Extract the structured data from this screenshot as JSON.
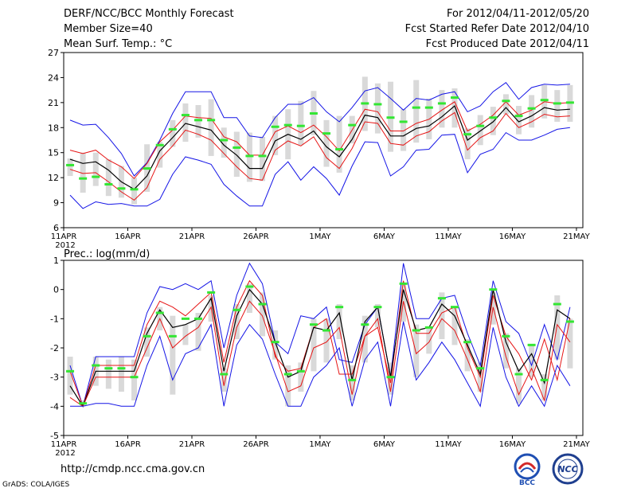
{
  "header": {
    "title": "DERF/NCC/BCC Monthly Forecast",
    "member_size": "Member Size=40",
    "variable_1": "Mean Surf. Temp.: °C",
    "period": "For 2012/04/11-2012/05/20",
    "started_refer": "Fcst Started Refer Date 2012/04/10",
    "produced": "Fcst Produced Date 2012/04/11"
  },
  "footer": {
    "url": "http://cmdp.ncc.cma.gov.cn",
    "grads": "GrADS: COLA/IGES",
    "logo_bcc": "BCC",
    "logo_ncc": "NCC"
  },
  "colors": {
    "envelope": "#1414e6",
    "spread": "#e61414",
    "mean": "#000000",
    "box": "#d9d9d9",
    "marker": "#33e633"
  },
  "chart_data": [
    {
      "type": "line",
      "title": "Mean Surf. Temp.: °C",
      "ylim": [
        6,
        27
      ],
      "yticks": [
        6,
        9,
        12,
        15,
        18,
        21,
        24,
        27
      ],
      "xlim": [
        0,
        40
      ],
      "xticks": [
        {
          "day": 0,
          "label": "11APR"
        },
        {
          "day": 5,
          "label": "16APR"
        },
        {
          "day": 10,
          "label": "21APR"
        },
        {
          "day": 15,
          "label": "26APR"
        },
        {
          "day": 20,
          "label": "1MAY"
        },
        {
          "day": 25,
          "label": "6MAY"
        },
        {
          "day": 30,
          "label": "11MAY"
        },
        {
          "day": 35,
          "label": "16MAY"
        },
        {
          "day": 40,
          "label": "21MAY"
        }
      ],
      "year_label": "2012",
      "series": [
        {
          "name": "ensemble max",
          "role": "envelope",
          "values": [
            18.9,
            18.3,
            18.4,
            16.8,
            14.9,
            12.2,
            13.8,
            16.5,
            19.7,
            22.3,
            22.3,
            22.3,
            19.2,
            19.2,
            17.0,
            16.8,
            19.2,
            20.8,
            20.8,
            21.6,
            19.9,
            18.7,
            20.4,
            22.4,
            22.8,
            21.5,
            20.1,
            21.5,
            21.3,
            22.0,
            22.3,
            19.9,
            20.6,
            22.3,
            23.4,
            21.4,
            22.8,
            23.2,
            23.1,
            23.2
          ]
        },
        {
          "name": "ensemble upper",
          "role": "spread",
          "values": [
            15.3,
            14.9,
            15.3,
            14.1,
            13.3,
            11.9,
            13.7,
            16.3,
            17.7,
            19.4,
            19.2,
            19.1,
            16.9,
            16.3,
            14.7,
            14.7,
            17.5,
            18.2,
            17.4,
            18.3,
            16.9,
            15.2,
            17.7,
            20.2,
            19.9,
            17.6,
            17.6,
            18.5,
            19.0,
            20.1,
            21.1,
            17.6,
            18.4,
            19.5,
            21.1,
            19.5,
            20.1,
            21.1,
            20.9,
            21.0
          ]
        },
        {
          "name": "ensemble mean",
          "role": "mean",
          "values": [
            14.2,
            13.7,
            13.9,
            12.9,
            11.5,
            10.6,
            12.2,
            15.2,
            16.8,
            18.5,
            18.1,
            17.7,
            15.9,
            14.7,
            13.1,
            13.1,
            16.4,
            17.2,
            16.6,
            17.6,
            15.7,
            14.5,
            16.6,
            19.5,
            19.2,
            17.0,
            17.0,
            17.9,
            18.2,
            19.3,
            20.6,
            16.5,
            17.6,
            18.7,
            20.4,
            18.7,
            19.4,
            20.4,
            20.1,
            20.2
          ]
        },
        {
          "name": "ensemble lower",
          "role": "spread",
          "values": [
            13.0,
            12.5,
            12.6,
            11.5,
            10.3,
            9.3,
            10.8,
            14.2,
            15.8,
            17.7,
            17.2,
            16.5,
            14.9,
            13.3,
            11.9,
            11.7,
            15.3,
            16.4,
            15.8,
            16.9,
            14.4,
            13.1,
            15.5,
            18.7,
            18.5,
            16.1,
            15.9,
            17.0,
            17.5,
            18.8,
            19.8,
            15.3,
            16.8,
            17.6,
            19.7,
            18.0,
            18.7,
            19.6,
            19.3,
            19.4
          ]
        },
        {
          "name": "ensemble min",
          "role": "envelope",
          "values": [
            9.9,
            8.3,
            9.1,
            8.8,
            8.9,
            8.6,
            8.6,
            9.4,
            12.4,
            14.5,
            14.1,
            13.6,
            11.2,
            9.8,
            8.6,
            8.6,
            12.4,
            13.9,
            11.7,
            13.3,
            11.9,
            9.9,
            13.4,
            16.3,
            16.2,
            12.2,
            13.3,
            15.3,
            15.4,
            17.1,
            17.2,
            12.6,
            14.8,
            15.4,
            17.4,
            16.5,
            16.5,
            17.1,
            17.8,
            18.0
          ]
        }
      ],
      "boxes": {
        "low": [
          12.2,
          10.2,
          11.0,
          9.8,
          9.6,
          8.8,
          10.3,
          13.2,
          15.7,
          16.3,
          16.8,
          14.6,
          14.4,
          12.1,
          11.5,
          11.6,
          14.7,
          14.2,
          15.9,
          17.1,
          13.3,
          12.6,
          16.1,
          17.6,
          17.3,
          15.1,
          15.2,
          16.2,
          16.6,
          18.0,
          18.0,
          14.2,
          15.9,
          17.1,
          19.6,
          17.2,
          18.0,
          19.1,
          18.7,
          18.7
        ],
        "high": [
          14.3,
          15.0,
          15.0,
          14.2,
          13.4,
          12.0,
          16.0,
          16.3,
          18.9,
          20.9,
          20.7,
          21.4,
          18.0,
          17.5,
          17.4,
          16.9,
          19.4,
          20.2,
          21.2,
          22.4,
          18.9,
          19.4,
          19.4,
          24.1,
          23.3,
          23.5,
          20.2,
          23.7,
          21.5,
          22.5,
          22.7,
          17.9,
          19.5,
          20.5,
          22.0,
          20.6,
          21.9,
          23.1,
          22.5,
          23.1
        ],
        "marker": [
          13.5,
          11.9,
          12.1,
          11.2,
          10.7,
          10.6,
          13.1,
          15.9,
          17.8,
          19.5,
          18.9,
          18.9,
          16.5,
          15.6,
          14.6,
          14.6,
          18.1,
          18.3,
          18.2,
          19.7,
          17.3,
          15.4,
          18.3,
          20.9,
          20.8,
          19.2,
          18.7,
          20.4,
          20.4,
          20.9,
          21.6,
          17.2,
          18.2,
          19.2,
          21.2,
          19.4,
          20.3,
          21.3,
          20.9,
          21.0
        ]
      }
    },
    {
      "type": "line",
      "title": "Prec.: log(mm/d)",
      "ylim": [
        -5,
        1
      ],
      "yticks": [
        -5,
        -4,
        -3,
        -2,
        -1,
        0,
        1
      ],
      "xlim": [
        0,
        40
      ],
      "xticks": [
        {
          "day": 0,
          "label": "11APR"
        },
        {
          "day": 5,
          "label": "16APR"
        },
        {
          "day": 10,
          "label": "21APR"
        },
        {
          "day": 15,
          "label": "26APR"
        },
        {
          "day": 20,
          "label": "1MAY"
        },
        {
          "day": 25,
          "label": "6MAY"
        },
        {
          "day": 30,
          "label": "11MAY"
        },
        {
          "day": 35,
          "label": "16MAY"
        },
        {
          "day": 40,
          "label": "21MAY"
        }
      ],
      "year_label": "2012",
      "series": [
        {
          "name": "ensemble max",
          "role": "envelope",
          "values": [
            -2.6,
            -4.0,
            -2.3,
            -2.3,
            -2.3,
            -2.3,
            -0.8,
            0.1,
            0.0,
            0.2,
            0.0,
            0.3,
            -2.0,
            -0.2,
            0.9,
            0.2,
            -1.8,
            -2.2,
            -0.9,
            -1.0,
            -0.6,
            -2.4,
            -2.5,
            -1.2,
            -0.6,
            -3.0,
            0.9,
            -1.0,
            -1.0,
            -0.3,
            -0.2,
            -1.5,
            -2.6,
            0.3,
            -1.1,
            -1.5,
            -2.6,
            -1.2,
            -2.4,
            -0.6
          ]
        },
        {
          "name": "ensemble upper",
          "role": "spread",
          "values": [
            -2.8,
            -4.0,
            -2.6,
            -2.6,
            -2.6,
            -2.6,
            -1.2,
            -0.4,
            -0.6,
            -0.9,
            -0.5,
            -0.1,
            -2.5,
            -0.6,
            0.3,
            -0.2,
            -2.3,
            -2.8,
            -2.7,
            -1.3,
            -1.0,
            -2.9,
            -2.9,
            -1.6,
            -1.3,
            -3.2,
            0.3,
            -1.5,
            -1.5,
            -0.8,
            -0.6,
            -2.0,
            -3.0,
            -0.2,
            -1.6,
            -2.2,
            -3.1,
            -1.7,
            -3.1,
            -1.0
          ]
        },
        {
          "name": "ensemble mean",
          "role": "mean",
          "values": [
            -3.3,
            -4.0,
            -2.8,
            -2.8,
            -2.8,
            -2.8,
            -1.5,
            -0.7,
            -1.3,
            -1.2,
            -1.0,
            -0.3,
            -2.8,
            -0.9,
            0.0,
            -0.5,
            -1.8,
            -3.0,
            -2.8,
            -1.3,
            -1.4,
            -0.8,
            -3.1,
            -1.1,
            -0.6,
            -3.0,
            0.0,
            -1.4,
            -1.3,
            -0.5,
            -0.9,
            -1.9,
            -2.9,
            0.0,
            -1.8,
            -2.8,
            -2.2,
            -3.2,
            -0.7,
            -1.0
          ]
        },
        {
          "name": "ensemble lower",
          "role": "spread",
          "values": [
            -3.7,
            -4.0,
            -3.0,
            -3.0,
            -3.0,
            -3.0,
            -2.0,
            -1.0,
            -2.0,
            -1.6,
            -1.3,
            -0.6,
            -3.3,
            -1.3,
            -0.4,
            -0.9,
            -2.2,
            -3.5,
            -3.3,
            -2.0,
            -1.8,
            -1.3,
            -3.6,
            -1.6,
            -1.0,
            -3.5,
            -0.4,
            -2.2,
            -1.8,
            -1.0,
            -1.4,
            -2.4,
            -3.5,
            -0.6,
            -2.3,
            -3.6,
            -2.7,
            -3.8,
            -1.2,
            -1.8
          ]
        },
        {
          "name": "ensemble min",
          "role": "envelope",
          "values": [
            -4.0,
            -4.0,
            -3.9,
            -3.9,
            -4.0,
            -4.0,
            -2.6,
            -1.6,
            -3.1,
            -2.2,
            -2.0,
            -1.2,
            -4.0,
            -1.9,
            -1.2,
            -1.7,
            -2.9,
            -4.0,
            -4.0,
            -3.0,
            -2.6,
            -2.0,
            -4.0,
            -2.4,
            -1.8,
            -4.0,
            -1.1,
            -3.1,
            -2.5,
            -1.8,
            -2.4,
            -3.2,
            -4.0,
            -1.3,
            -3.0,
            -4.0,
            -3.3,
            -4.0,
            -2.6,
            -3.3
          ]
        }
      ],
      "boxes": {
        "low": [
          -3.6,
          -4.0,
          -3.3,
          -3.4,
          -3.5,
          -3.8,
          -2.3,
          -1.4,
          -3.6,
          -1.9,
          -2.1,
          -1.1,
          -3.5,
          -1.7,
          -0.8,
          -1.6,
          -2.4,
          -4.0,
          -3.5,
          -2.8,
          -2.5,
          -1.7,
          -3.8,
          -2.5,
          -1.3,
          -3.6,
          -1.1,
          -3.0,
          -2.2,
          -1.7,
          -1.9,
          -2.8,
          -3.5,
          -1.2,
          -2.7,
          -3.9,
          -3.0,
          -3.8,
          -2.4,
          -2.7
        ],
        "high": [
          -2.3,
          -3.8,
          -2.3,
          -2.4,
          -2.3,
          -2.4,
          -1.3,
          -0.6,
          -0.9,
          -1.2,
          -0.8,
          -0.2,
          -2.7,
          -0.5,
          0.2,
          -0.1,
          -1.4,
          -2.6,
          -2.5,
          -1.0,
          -1.0,
          -0.5,
          -2.6,
          -0.9,
          -0.5,
          -2.5,
          0.2,
          -1.2,
          -1.3,
          -0.1,
          -0.6,
          -1.7,
          -2.5,
          -0.1,
          -1.5,
          -2.7,
          -1.9,
          -2.9,
          -0.2,
          -1.0
        ],
        "marker": [
          -2.8,
          -3.9,
          -2.6,
          -2.7,
          -2.7,
          -3.0,
          -1.6,
          -0.8,
          -1.6,
          -1.0,
          -1.0,
          -0.1,
          -2.9,
          -0.7,
          0.1,
          -0.5,
          -1.8,
          -2.9,
          -2.8,
          -1.2,
          -1.4,
          -0.6,
          -3.1,
          -1.2,
          -0.6,
          -3.0,
          0.2,
          -1.4,
          -1.3,
          -0.3,
          -0.6,
          -1.8,
          -2.7,
          0.0,
          -1.6,
          -2.9,
          -1.9,
          -3.1,
          -0.5,
          -1.1
        ]
      }
    }
  ]
}
